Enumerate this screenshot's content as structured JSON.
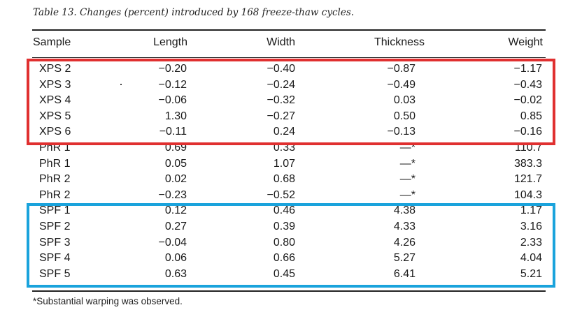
{
  "caption": "Table 13. Changes (percent) introduced by 168 freeze-thaw cycles.",
  "headers": [
    "Sample",
    "Length",
    "Width",
    "Thickness",
    "Weight"
  ],
  "rows": [
    [
      "XPS 2",
      "−0.20",
      "−0.40",
      "−0.87",
      "−1.17"
    ],
    [
      "XPS 3",
      "−0.12",
      "−0.24",
      "−0.49",
      "−0.43"
    ],
    [
      "XPS 4",
      "−0.06",
      "−0.32",
      "0.03",
      "−0.02"
    ],
    [
      "XPS 5",
      "1.30",
      "−0.27",
      "0.50",
      "0.85"
    ],
    [
      "XPS 6",
      "−0.11",
      "0.24",
      "−0.13",
      "−0.16"
    ],
    [
      "PhR 1",
      "0.69",
      "0.33",
      "—*",
      "110.7"
    ],
    [
      "PhR 1",
      "0.05",
      "1.07",
      "—*",
      "383.3"
    ],
    [
      "PhR 2",
      "0.02",
      "0.68",
      "—*",
      "121.7"
    ],
    [
      "PhR 2",
      "−0.23",
      "−0.52",
      "—*",
      "104.3"
    ],
    [
      "SPF 1",
      "0.12",
      "0.46",
      "4.38",
      "1.17"
    ],
    [
      "SPF 2",
      "0.27",
      "0.39",
      "4.33",
      "3.16"
    ],
    [
      "SPF 3",
      "−0.04",
      "0.80",
      "4.26",
      "2.33"
    ],
    [
      "SPF 4",
      "0.06",
      "0.66",
      "5.27",
      "4.04"
    ],
    [
      "SPF 5",
      "0.63",
      "0.45",
      "6.41",
      "5.21"
    ]
  ],
  "footnote": "*Substantial warping was observed.",
  "highlight_colors": {
    "xps_group": "#e03030",
    "spf_group": "#1aa3dc"
  }
}
